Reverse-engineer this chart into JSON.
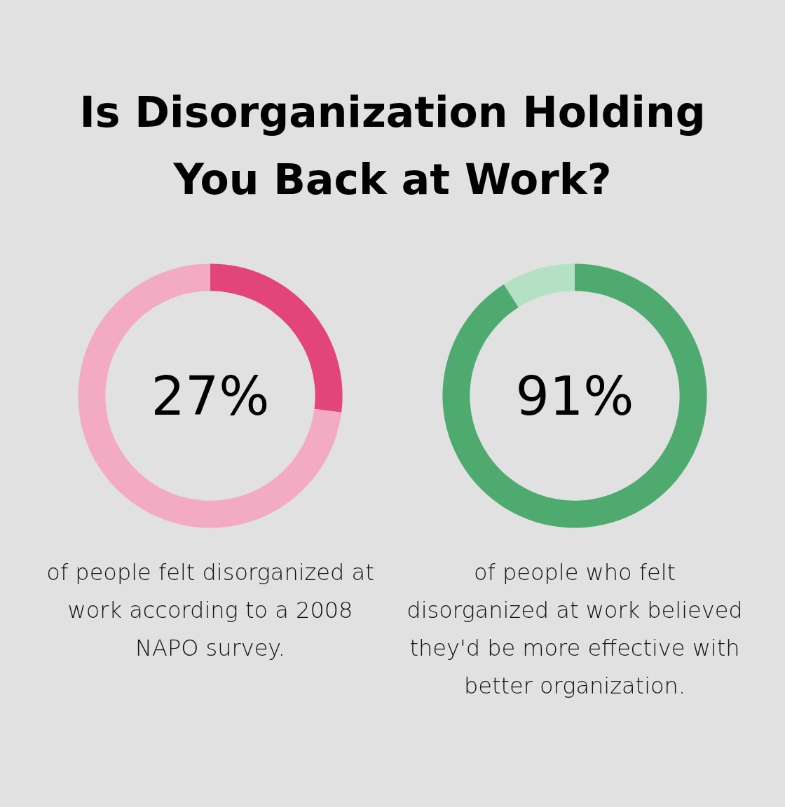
{
  "chart_data": [
    {
      "type": "donut",
      "title": "Is Disorganization Holding You Back at Work?",
      "categories": [
        null,
        null
      ],
      "values": [
        27,
        73
      ],
      "colors": [
        "#e2457a",
        "#f2abc2"
      ],
      "value_labels": [
        "27%",
        null
      ],
      "annotations": [
        "of people felt disorganized at work according to a 2008 NAPO survey."
      ]
    },
    {
      "type": "donut",
      "categories": [
        null,
        null
      ],
      "values": [
        91,
        9
      ],
      "colors": [
        "#4eaa6f",
        "#b4e0c4"
      ],
      "value_labels": [
        "91%",
        null
      ],
      "annotations": [
        "of people who felt disorganized at work believed they'd be more effective with better organization."
      ]
    }
  ]
}
